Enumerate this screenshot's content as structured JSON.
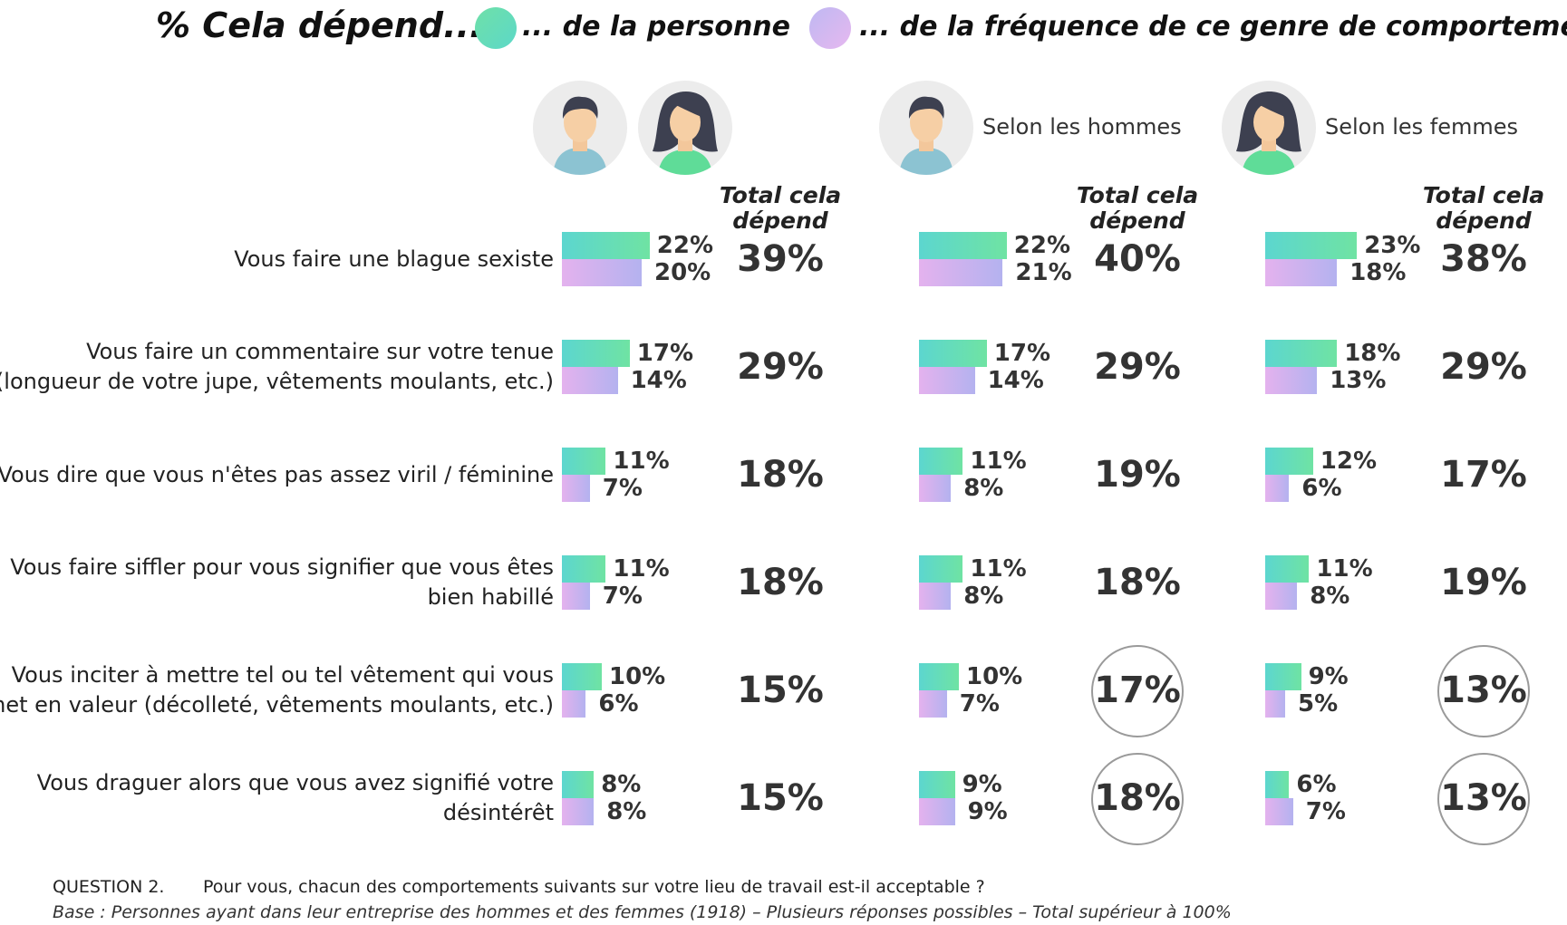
{
  "header": {
    "title": "% Cela dépend...",
    "legend_person": "... de la personne",
    "legend_frequency": "... de la fréquence de ce genre de comportement",
    "colors": {
      "person": "#6fe0a8",
      "frequency": "#c4b6f0"
    }
  },
  "groups": [
    {
      "label": "",
      "avatars": [
        "man-avatar-icon",
        "woman-avatar-icon"
      ]
    },
    {
      "label": "Selon les hommes",
      "avatars": [
        "man-avatar-icon"
      ]
    },
    {
      "label": "Selon les femmes",
      "avatars": [
        "woman-avatar-icon"
      ]
    }
  ],
  "total_header": "Total cela dépend",
  "chart_data": {
    "type": "bar",
    "orientation": "horizontal",
    "categories": [
      "Vous faire une blague sexiste",
      "Vous faire un commentaire sur votre tenue (longueur de votre jupe, vêtements moulants, etc.)",
      "Vous dire que vous n'êtes pas assez viril / féminine",
      "Vous faire siffler pour vous signifier que vous êtes bien habillé",
      "Vous inciter à mettre tel ou tel vêtement qui vous met en valeur (décolleté, vêtements moulants, etc.)",
      "Vous draguer alors que vous avez signifié votre désintérêt"
    ],
    "category_lines": [
      [
        "Vous faire une blague sexiste"
      ],
      [
        "Vous faire un commentaire sur votre tenue",
        "(longueur de votre jupe, vêtements moulants, etc.)"
      ],
      [
        "Vous dire que vous n'êtes pas assez viril / féminine"
      ],
      [
        "Vous faire siffler pour vous signifier que vous êtes",
        "bien habillé"
      ],
      [
        "Vous inciter à mettre tel ou tel vêtement qui vous",
        "met en valeur (décolleté, vêtements moulants, etc.)"
      ],
      [
        "Vous draguer alors que vous avez signifié votre",
        "désintérêt"
      ]
    ],
    "unit": "%",
    "panels": [
      {
        "name": "",
        "series": [
          {
            "name": "... de la personne",
            "values": [
              22,
              17,
              11,
              11,
              10,
              8
            ]
          },
          {
            "name": "... de la fréquence de ce genre de comportement",
            "values": [
              20,
              14,
              7,
              7,
              6,
              8
            ]
          }
        ],
        "totals": [
          39,
          29,
          18,
          18,
          15,
          15
        ],
        "circled": [
          false,
          false,
          false,
          false,
          false,
          false
        ]
      },
      {
        "name": "Selon les hommes",
        "series": [
          {
            "name": "... de la personne",
            "values": [
              22,
              17,
              11,
              11,
              10,
              9
            ]
          },
          {
            "name": "... de la fréquence de ce genre de comportement",
            "values": [
              21,
              14,
              8,
              8,
              7,
              9
            ]
          }
        ],
        "totals": [
          40,
          29,
          19,
          18,
          17,
          18
        ],
        "circled": [
          false,
          false,
          false,
          false,
          true,
          true
        ]
      },
      {
        "name": "Selon les femmes",
        "series": [
          {
            "name": "... de la personne",
            "values": [
              23,
              18,
              12,
              11,
              9,
              6
            ]
          },
          {
            "name": "... de la fréquence de ce genre de comportement",
            "values": [
              18,
              13,
              6,
              8,
              5,
              7
            ]
          }
        ],
        "totals": [
          38,
          29,
          17,
          19,
          13,
          13
        ],
        "circled": [
          false,
          false,
          false,
          false,
          true,
          true
        ]
      }
    ]
  },
  "footer": {
    "question_label": "QUESTION 2.",
    "question_text": "Pour vous, chacun des comportements suivants sur votre lieu de travail est-il acceptable ?",
    "base": "Base : Personnes ayant dans leur entreprise des hommes et des femmes (1918) – Plusieurs réponses possibles – Total supérieur à 100%"
  }
}
